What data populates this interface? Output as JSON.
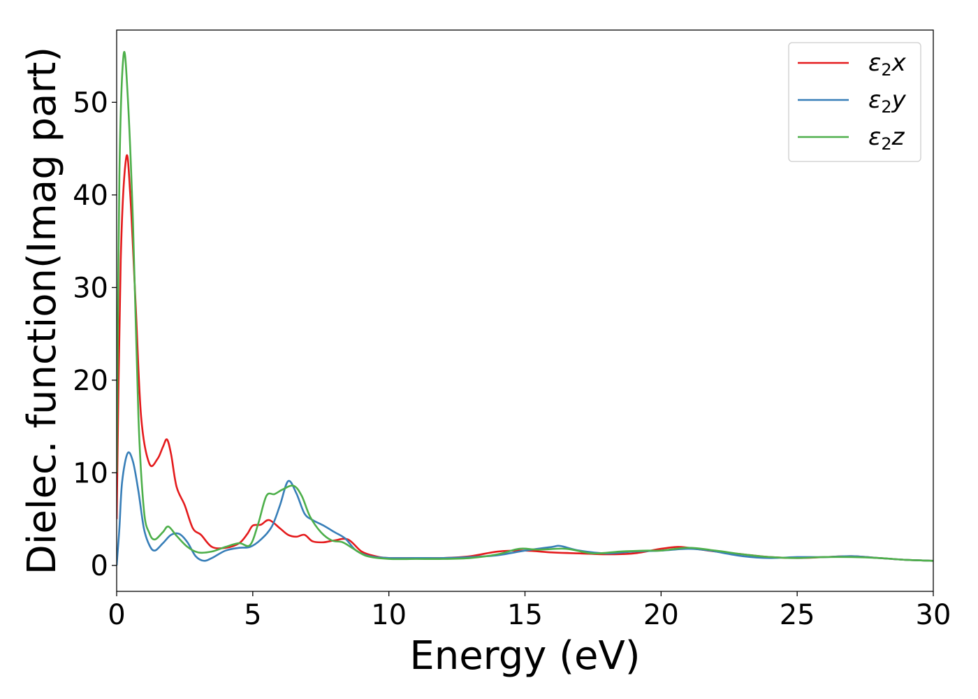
{
  "chart_data": {
    "type": "line",
    "title": "",
    "xlabel": "Energy (eV)",
    "ylabel": "Dielec. function(Imag part)",
    "xlim": [
      0,
      30
    ],
    "ylim": [
      -2.8,
      57.8
    ],
    "xticks": [
      0,
      5,
      10,
      15,
      20,
      25,
      30
    ],
    "yticks": [
      0,
      10,
      20,
      30,
      40,
      50
    ],
    "grid": false,
    "legend_position": "top-right",
    "series": [
      {
        "key": "x",
        "name": {
          "base": "ε",
          "sub": "2",
          "suffix": "x"
        },
        "color": "#e41a1c",
        "points": [
          [
            0,
            5
          ],
          [
            0.15,
            33
          ],
          [
            0.35,
            44
          ],
          [
            0.5,
            40
          ],
          [
            0.7,
            28
          ],
          [
            0.9,
            16
          ],
          [
            1.2,
            11
          ],
          [
            1.5,
            11.5
          ],
          [
            1.7,
            12.8
          ],
          [
            1.85,
            13.6
          ],
          [
            2.0,
            12
          ],
          [
            2.2,
            8.5
          ],
          [
            2.5,
            6.5
          ],
          [
            2.8,
            4
          ],
          [
            3.1,
            3.3
          ],
          [
            3.5,
            2.0
          ],
          [
            4.0,
            1.9
          ],
          [
            4.5,
            2.4
          ],
          [
            4.8,
            3.4
          ],
          [
            5.0,
            4.3
          ],
          [
            5.3,
            4.4
          ],
          [
            5.6,
            4.9
          ],
          [
            6.0,
            4.0
          ],
          [
            6.3,
            3.3
          ],
          [
            6.6,
            3.1
          ],
          [
            6.9,
            3.3
          ],
          [
            7.2,
            2.6
          ],
          [
            7.6,
            2.5
          ],
          [
            8.0,
            2.7
          ],
          [
            8.5,
            2.8
          ],
          [
            9.0,
            1.5
          ],
          [
            9.5,
            1.0
          ],
          [
            10,
            0.8
          ],
          [
            11,
            0.8
          ],
          [
            12,
            0.8
          ],
          [
            13,
            1.0
          ],
          [
            14,
            1.5
          ],
          [
            15,
            1.6
          ],
          [
            16,
            1.4
          ],
          [
            17,
            1.3
          ],
          [
            18,
            1.2
          ],
          [
            19,
            1.3
          ],
          [
            20,
            1.8
          ],
          [
            20.6,
            2.0
          ],
          [
            21,
            1.9
          ],
          [
            22,
            1.5
          ],
          [
            23,
            1.2
          ],
          [
            24,
            0.9
          ],
          [
            25,
            0.8
          ],
          [
            26,
            0.9
          ],
          [
            27,
            1.0
          ],
          [
            28,
            0.8
          ],
          [
            29,
            0.6
          ],
          [
            30,
            0.5
          ]
        ]
      },
      {
        "key": "y",
        "name": {
          "base": "ε",
          "sub": "2",
          "suffix": "y"
        },
        "color": "#377eb8",
        "points": [
          [
            0,
            0
          ],
          [
            0.1,
            4
          ],
          [
            0.2,
            9
          ],
          [
            0.4,
            12.1
          ],
          [
            0.6,
            11.2
          ],
          [
            0.8,
            8
          ],
          [
            1.0,
            4
          ],
          [
            1.2,
            2.2
          ],
          [
            1.4,
            1.6
          ],
          [
            1.7,
            2.4
          ],
          [
            2.0,
            3.3
          ],
          [
            2.3,
            3.4
          ],
          [
            2.6,
            2.5
          ],
          [
            2.9,
            1.0
          ],
          [
            3.2,
            0.5
          ],
          [
            3.5,
            0.8
          ],
          [
            4.0,
            1.6
          ],
          [
            4.5,
            1.9
          ],
          [
            4.9,
            2.0
          ],
          [
            5.3,
            2.8
          ],
          [
            5.7,
            4.2
          ],
          [
            6.0,
            6.5
          ],
          [
            6.3,
            9.1
          ],
          [
            6.6,
            7.8
          ],
          [
            6.9,
            5.6
          ],
          [
            7.2,
            4.9
          ],
          [
            7.6,
            4.3
          ],
          [
            8.0,
            3.6
          ],
          [
            8.4,
            2.9
          ],
          [
            8.8,
            1.6
          ],
          [
            9.3,
            1.0
          ],
          [
            10,
            0.8
          ],
          [
            11,
            0.8
          ],
          [
            12,
            0.8
          ],
          [
            13,
            0.9
          ],
          [
            14,
            1.1
          ],
          [
            15,
            1.6
          ],
          [
            16,
            2.0
          ],
          [
            16.3,
            2.1
          ],
          [
            17,
            1.6
          ],
          [
            18,
            1.3
          ],
          [
            19,
            1.5
          ],
          [
            20,
            1.6
          ],
          [
            21,
            1.8
          ],
          [
            21.8,
            1.6
          ],
          [
            22,
            1.5
          ],
          [
            23,
            1.0
          ],
          [
            24,
            0.8
          ],
          [
            25,
            0.9
          ],
          [
            26,
            0.9
          ],
          [
            27,
            1.0
          ],
          [
            28,
            0.8
          ],
          [
            29,
            0.6
          ],
          [
            30,
            0.5
          ]
        ]
      },
      {
        "key": "z",
        "name": {
          "base": "ε",
          "sub": "2",
          "suffix": "z"
        },
        "color": "#4daf4a",
        "points": [
          [
            0,
            10
          ],
          [
            0.1,
            42
          ],
          [
            0.25,
            55
          ],
          [
            0.4,
            51
          ],
          [
            0.6,
            37
          ],
          [
            0.8,
            16
          ],
          [
            1.0,
            6
          ],
          [
            1.2,
            3.5
          ],
          [
            1.4,
            2.8
          ],
          [
            1.7,
            3.6
          ],
          [
            1.9,
            4.2
          ],
          [
            2.2,
            3.2
          ],
          [
            2.6,
            2.0
          ],
          [
            3.0,
            1.4
          ],
          [
            3.5,
            1.5
          ],
          [
            4.0,
            2.0
          ],
          [
            4.5,
            2.4
          ],
          [
            4.9,
            2.2
          ],
          [
            5.2,
            4.5
          ],
          [
            5.5,
            7.5
          ],
          [
            5.8,
            7.7
          ],
          [
            6.1,
            8.2
          ],
          [
            6.5,
            8.6
          ],
          [
            6.8,
            7.5
          ],
          [
            7.1,
            5.3
          ],
          [
            7.5,
            3.6
          ],
          [
            7.9,
            2.7
          ],
          [
            8.3,
            2.5
          ],
          [
            8.7,
            1.8
          ],
          [
            9.2,
            1.0
          ],
          [
            10,
            0.7
          ],
          [
            11,
            0.7
          ],
          [
            12,
            0.7
          ],
          [
            13,
            0.8
          ],
          [
            14,
            1.2
          ],
          [
            14.8,
            1.8
          ],
          [
            15.5,
            1.7
          ],
          [
            16.5,
            1.8
          ],
          [
            17.5,
            1.3
          ],
          [
            18.5,
            1.5
          ],
          [
            19.5,
            1.6
          ],
          [
            20,
            1.6
          ],
          [
            21,
            1.9
          ],
          [
            22,
            1.6
          ],
          [
            23,
            1.2
          ],
          [
            24,
            0.9
          ],
          [
            25,
            0.8
          ],
          [
            26,
            0.9
          ],
          [
            27,
            0.9
          ],
          [
            28,
            0.8
          ],
          [
            29,
            0.6
          ],
          [
            30,
            0.5
          ]
        ]
      }
    ]
  }
}
